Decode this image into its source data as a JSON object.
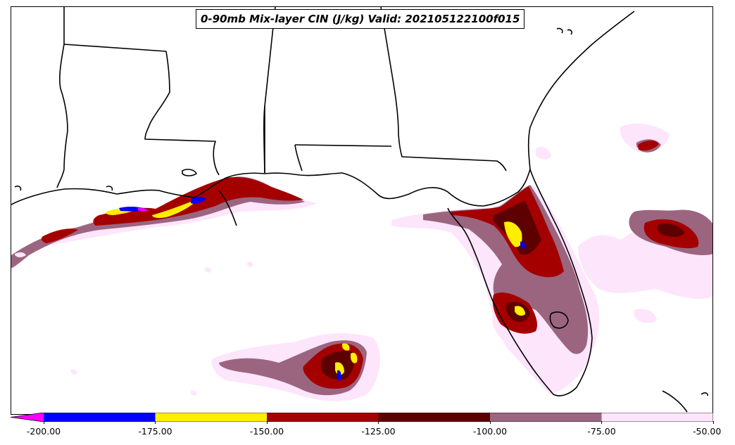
{
  "title": "0-90mb Mix-layer CIN (J/kg) Valid: 202105122100f015",
  "colors": {
    "lt_-200": "#ff00ff",
    "-200_-175": "#0000ff",
    "-175_-150": "#ffee00",
    "-150_-125": "#a50000",
    "-125_-100": "#5c0000",
    "-100_-75": "#9b6580",
    "-75_-50": "#fde5fb",
    "land_border": "#000000",
    "background": "#ffffff"
  },
  "colorbar": {
    "ticks": [
      "-200.00",
      "-175.00",
      "-150.00",
      "-125.00",
      "-100.00",
      "-75.00",
      "-50.00"
    ],
    "extend": "min"
  }
}
